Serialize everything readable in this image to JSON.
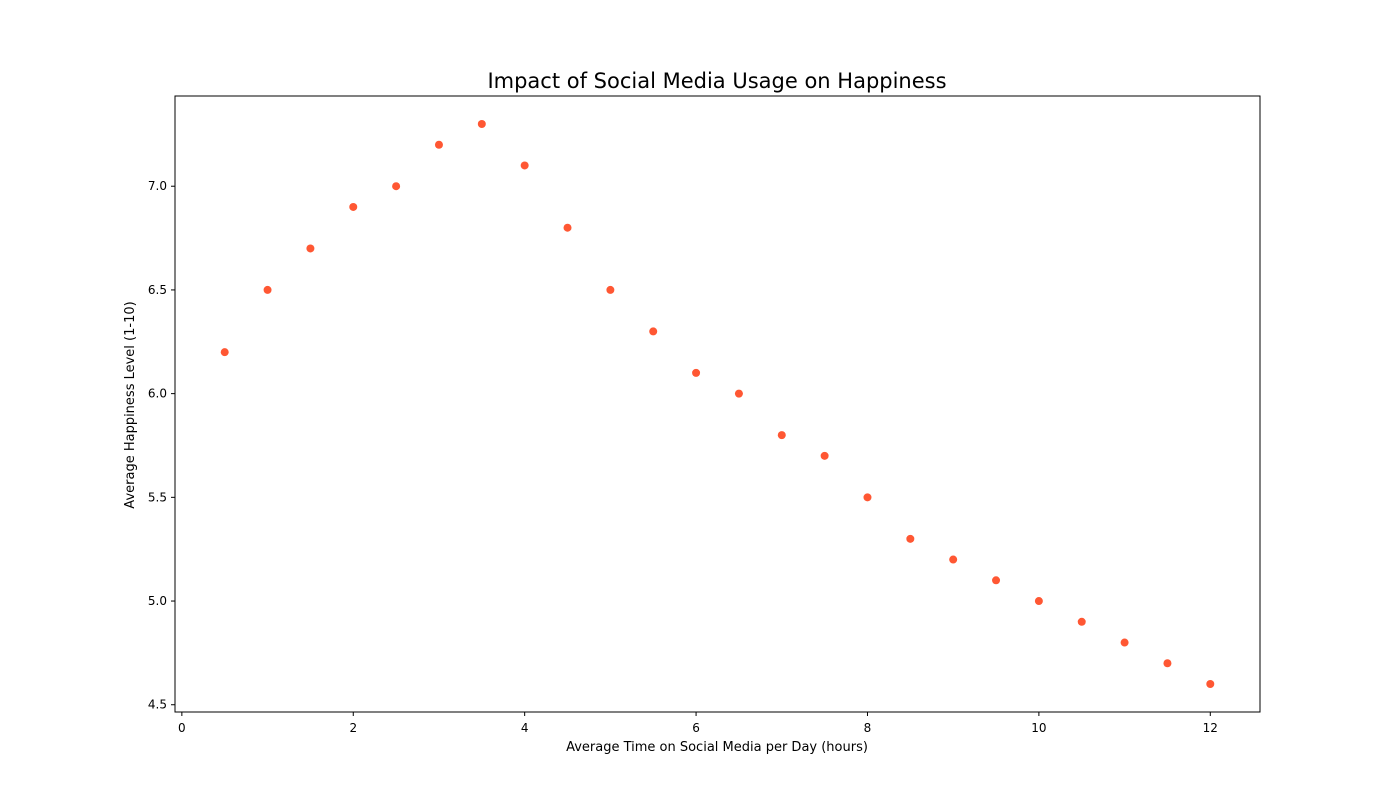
{
  "chart_data": {
    "type": "scatter",
    "title": "Impact of Social Media Usage on Happiness",
    "xlabel": "Average Time on Social Media per Day (hours)",
    "ylabel": "Average Happiness Level (1-10)",
    "x": [
      0.5,
      1.0,
      1.5,
      2.0,
      2.5,
      3.0,
      3.5,
      4.0,
      4.5,
      5.0,
      5.5,
      6.0,
      6.5,
      7.0,
      7.5,
      8.0,
      8.5,
      9.0,
      9.5,
      10.0,
      10.5,
      11.0,
      11.5,
      12.0
    ],
    "y": [
      6.2,
      6.5,
      6.7,
      6.9,
      7.0,
      7.2,
      7.3,
      7.1,
      6.8,
      6.5,
      6.3,
      6.1,
      6.0,
      5.8,
      5.7,
      5.5,
      5.3,
      5.2,
      5.1,
      5.0,
      4.9,
      4.8,
      4.7,
      4.6
    ],
    "xlim": [
      -0.08,
      12.58
    ],
    "ylim": [
      4.465,
      7.435
    ],
    "xticks": [
      0,
      2,
      4,
      6,
      8,
      10,
      12
    ],
    "xtick_labels": [
      "0",
      "2",
      "4",
      "6",
      "8",
      "10",
      "12"
    ],
    "yticks": [
      4.5,
      5.0,
      5.5,
      6.0,
      6.5,
      7.0
    ],
    "ytick_labels": [
      "4.5",
      "5.0",
      "5.5",
      "6.0",
      "6.5",
      "7.0"
    ],
    "grid": false,
    "marker_color": "#FF5733"
  }
}
